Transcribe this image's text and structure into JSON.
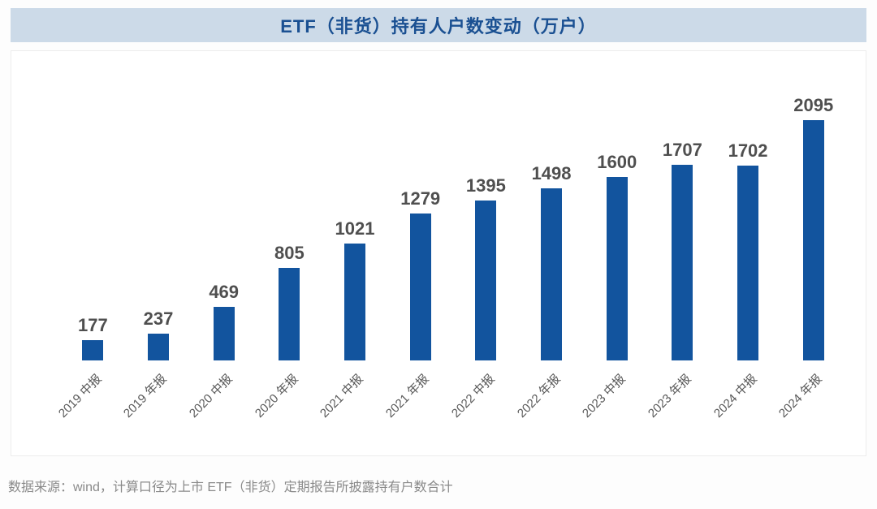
{
  "header": {
    "title": "ETF（非货）持有人户数变动（万户）"
  },
  "chart_data": {
    "type": "bar",
    "title": "ETF（非货）持有人户数变动（万户）",
    "categories": [
      "2019 中报",
      "2019 年报",
      "2020 中报",
      "2020 年报",
      "2021 中报",
      "2021 年报",
      "2022 中报",
      "2022 年报",
      "2023 中报",
      "2023 年报",
      "2024 中报",
      "2024 年报"
    ],
    "values": [
      177,
      237,
      469,
      805,
      1021,
      1279,
      1395,
      1498,
      1600,
      1707,
      1702,
      2095
    ],
    "xlabel": "",
    "ylabel": "",
    "ylim": [
      0,
      2300
    ],
    "grid": "off",
    "legend": "none",
    "data_labels": "above-bars",
    "x_tick_rotation": 45,
    "bar_color": "#12549E"
  },
  "footer": {
    "source": "数据来源：wind，计算口径为上市 ETF（非货）定期报告所披露持有户数合计"
  },
  "colors": {
    "bar-color": "#12549E",
    "band-bg": "#CCDAE8",
    "title-color": "#1A5092",
    "value-label-color": "#4F4F4F",
    "axis-label-color": "#595959",
    "footer-color": "#8A8A8A"
  }
}
